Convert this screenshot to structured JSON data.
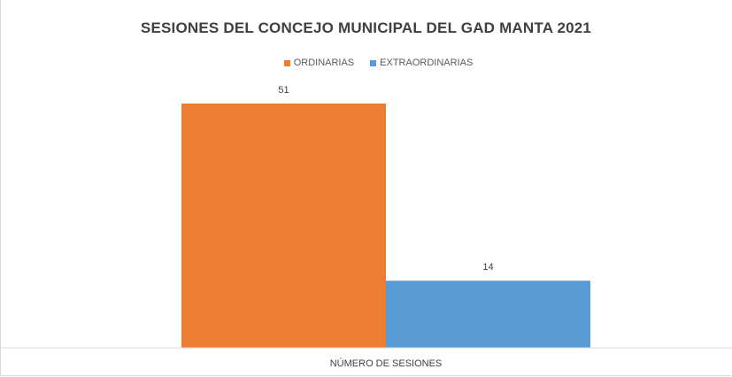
{
  "chart_data": {
    "type": "bar",
    "title": "SESIONES DEL CONCEJO MUNICIPAL DEL GAD MANTA 2021",
    "categories": [
      "NÚMERO DE SESIONES"
    ],
    "series": [
      {
        "name": "ORDINARIAS",
        "values": [
          51
        ],
        "color": "#ed7d31"
      },
      {
        "name": "EXTRAORDINARIAS",
        "values": [
          14
        ],
        "color": "#5b9bd5"
      }
    ],
    "ylim": [
      0,
      60
    ],
    "grid": false,
    "legend_position": "top",
    "data_labels": true
  }
}
